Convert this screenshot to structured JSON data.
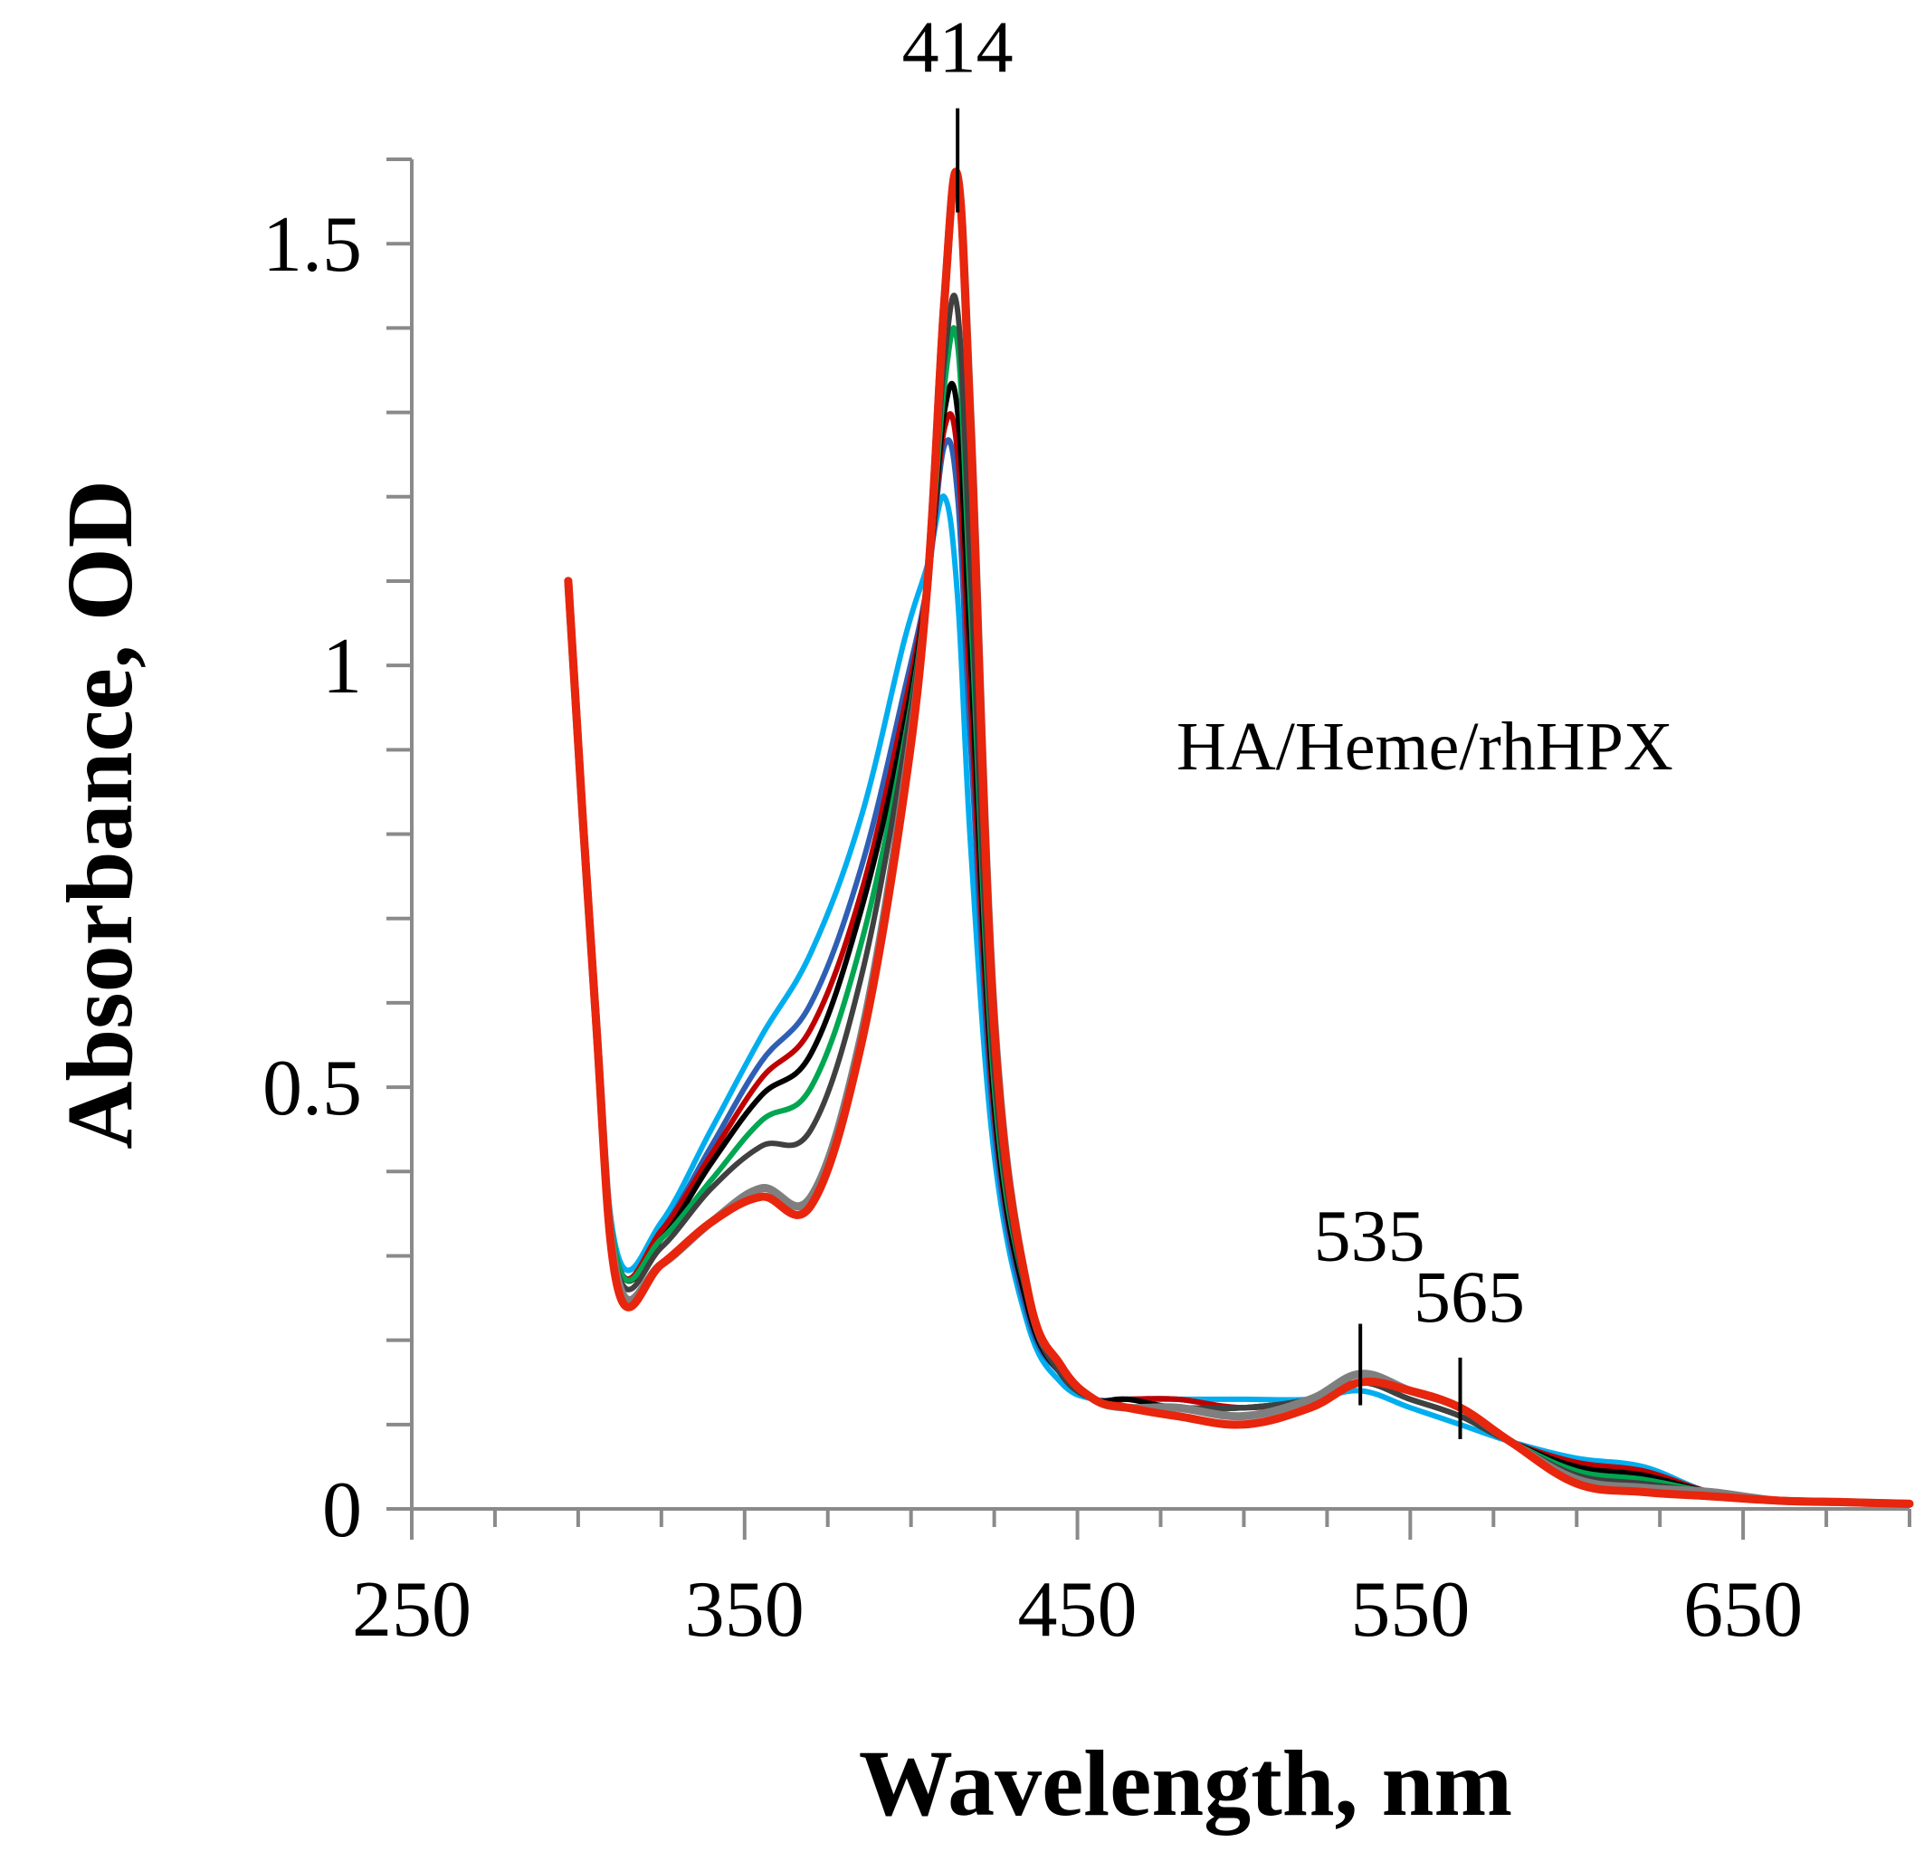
{
  "chart_data": {
    "type": "line",
    "title": "",
    "xlabel": "Wavelength, nm",
    "ylabel": "Absorbance, OD",
    "xlim": [
      250,
      700
    ],
    "ylim": [
      0,
      1.6
    ],
    "x_ticks": [
      "250",
      "350",
      "450",
      "550",
      "650"
    ],
    "y_ticks": [
      "0",
      "0.5",
      "1",
      "1.5"
    ],
    "x_tick_values": [
      250,
      350,
      450,
      550,
      650
    ],
    "y_tick_values": [
      0,
      0.5,
      1,
      1.5
    ],
    "grid": false,
    "legend": "none",
    "inset_text": "HA/Heme/rhHPX",
    "annotations": [
      {
        "label": "414",
        "x": 414
      },
      {
        "label": "535",
        "x": 535
      },
      {
        "label": "565",
        "x": 565
      }
    ],
    "series": [
      {
        "color": "#00aeef",
        "x": [
          297,
          305,
          312,
          325,
          340,
          355,
          370,
          385,
          398,
          405,
          410,
          414,
          418,
          425,
          435,
          445,
          455,
          465,
          480,
          500,
          520,
          535,
          550,
          565,
          580,
          600,
          620,
          640,
          660,
          680,
          700
        ],
        "y": [
          1.1,
          0.6,
          0.3,
          0.34,
          0.45,
          0.56,
          0.66,
          0.82,
          1.03,
          1.12,
          1.2,
          1.08,
          0.78,
          0.42,
          0.22,
          0.15,
          0.13,
          0.13,
          0.13,
          0.13,
          0.13,
          0.14,
          0.12,
          0.1,
          0.08,
          0.06,
          0.05,
          0.02,
          0.01,
          0.008,
          0.006
        ]
      },
      {
        "color": "#2e5fb4",
        "x": [
          297,
          305,
          312,
          325,
          340,
          355,
          370,
          385,
          398,
          405,
          410,
          414,
          418,
          425,
          435,
          445,
          455,
          465,
          480,
          500,
          520,
          535,
          550,
          565,
          580,
          600,
          620,
          640,
          660,
          680,
          700
        ],
        "y": [
          1.1,
          0.6,
          0.29,
          0.33,
          0.43,
          0.53,
          0.6,
          0.76,
          0.97,
          1.1,
          1.26,
          1.2,
          0.9,
          0.45,
          0.23,
          0.16,
          0.13,
          0.13,
          0.13,
          0.12,
          0.13,
          0.15,
          0.13,
          0.11,
          0.08,
          0.055,
          0.045,
          0.02,
          0.01,
          0.008,
          0.006
        ]
      },
      {
        "color": "#c00000",
        "x": [
          297,
          305,
          312,
          325,
          340,
          355,
          370,
          385,
          398,
          405,
          410,
          414,
          418,
          425,
          435,
          445,
          455,
          465,
          480,
          500,
          520,
          535,
          550,
          565,
          580,
          600,
          620,
          640,
          660,
          680,
          700
        ],
        "y": [
          1.1,
          0.6,
          0.29,
          0.33,
          0.42,
          0.51,
          0.57,
          0.73,
          0.95,
          1.1,
          1.28,
          1.25,
          0.95,
          0.47,
          0.24,
          0.16,
          0.13,
          0.13,
          0.13,
          0.12,
          0.13,
          0.15,
          0.13,
          0.11,
          0.08,
          0.055,
          0.045,
          0.02,
          0.01,
          0.008,
          0.006
        ]
      },
      {
        "color": "#000000",
        "x": [
          297,
          305,
          312,
          325,
          340,
          355,
          370,
          385,
          398,
          405,
          410,
          414,
          418,
          425,
          435,
          445,
          455,
          465,
          480,
          500,
          520,
          535,
          550,
          565,
          580,
          600,
          620,
          640,
          660,
          680,
          700
        ],
        "y": [
          1.1,
          0.6,
          0.29,
          0.32,
          0.41,
          0.49,
          0.54,
          0.71,
          0.93,
          1.1,
          1.3,
          1.3,
          1.0,
          0.48,
          0.24,
          0.16,
          0.13,
          0.13,
          0.12,
          0.12,
          0.13,
          0.15,
          0.13,
          0.11,
          0.08,
          0.05,
          0.04,
          0.02,
          0.01,
          0.008,
          0.006
        ]
      },
      {
        "color": "#00a651",
        "x": [
          297,
          305,
          312,
          325,
          340,
          355,
          370,
          385,
          398,
          405,
          410,
          414,
          418,
          425,
          435,
          445,
          455,
          465,
          480,
          500,
          520,
          535,
          550,
          565,
          580,
          600,
          620,
          640,
          660,
          680,
          700
        ],
        "y": [
          1.1,
          0.6,
          0.29,
          0.32,
          0.39,
          0.46,
          0.5,
          0.67,
          0.91,
          1.1,
          1.33,
          1.38,
          1.06,
          0.5,
          0.25,
          0.16,
          0.13,
          0.12,
          0.12,
          0.12,
          0.13,
          0.15,
          0.13,
          0.11,
          0.08,
          0.045,
          0.035,
          0.02,
          0.01,
          0.008,
          0.006
        ]
      },
      {
        "color": "#404040",
        "x": [
          297,
          305,
          312,
          325,
          340,
          355,
          370,
          385,
          398,
          405,
          410,
          414,
          418,
          425,
          435,
          445,
          455,
          465,
          480,
          500,
          520,
          535,
          550,
          565,
          580,
          600,
          620,
          640,
          660,
          680,
          700
        ],
        "y": [
          1.1,
          0.6,
          0.28,
          0.31,
          0.38,
          0.43,
          0.45,
          0.63,
          0.9,
          1.1,
          1.36,
          1.42,
          1.1,
          0.52,
          0.25,
          0.16,
          0.13,
          0.12,
          0.12,
          0.12,
          0.13,
          0.15,
          0.13,
          0.11,
          0.08,
          0.04,
          0.03,
          0.02,
          0.01,
          0.008,
          0.006
        ]
      },
      {
        "color": "#7f7f7f",
        "x": [
          297,
          305,
          312,
          325,
          340,
          355,
          370,
          385,
          398,
          405,
          410,
          414,
          418,
          425,
          435,
          445,
          455,
          465,
          480,
          500,
          520,
          535,
          550,
          565,
          580,
          600,
          620,
          640,
          660,
          680,
          700
        ],
        "y": [
          1.1,
          0.6,
          0.27,
          0.29,
          0.34,
          0.38,
          0.37,
          0.56,
          0.86,
          1.1,
          1.43,
          1.58,
          1.28,
          0.58,
          0.26,
          0.17,
          0.13,
          0.12,
          0.12,
          0.11,
          0.13,
          0.16,
          0.14,
          0.12,
          0.08,
          0.035,
          0.025,
          0.02,
          0.01,
          0.008,
          0.006
        ]
      },
      {
        "color": "#e8250d",
        "x": [
          297,
          305,
          312,
          325,
          340,
          355,
          370,
          385,
          398,
          405,
          410,
          414,
          418,
          425,
          435,
          445,
          455,
          465,
          480,
          500,
          520,
          535,
          550,
          565,
          580,
          600,
          620,
          640,
          660,
          680,
          700
        ],
        "y": [
          1.1,
          0.6,
          0.26,
          0.29,
          0.34,
          0.37,
          0.36,
          0.55,
          0.85,
          1.1,
          1.43,
          1.58,
          1.27,
          0.57,
          0.26,
          0.17,
          0.13,
          0.12,
          0.11,
          0.1,
          0.12,
          0.15,
          0.14,
          0.12,
          0.08,
          0.03,
          0.02,
          0.015,
          0.01,
          0.008,
          0.006
        ]
      }
    ]
  }
}
